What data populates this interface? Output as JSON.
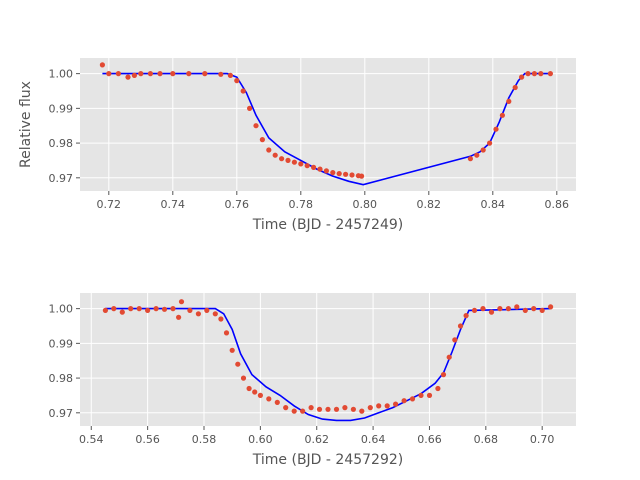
{
  "chart_data": [
    {
      "type": "scatter",
      "xlabel": "Time (BJD - 2457249)",
      "ylabel": "Relative flux",
      "xlim": [
        0.711,
        0.866
      ],
      "ylim": [
        0.9662,
        1.0045
      ],
      "xticks": [
        "0.72",
        "0.74",
        "0.76",
        "0.78",
        "0.80",
        "0.82",
        "0.84",
        "0.86"
      ],
      "yticks": [
        "0.97",
        "0.98",
        "0.99",
        "1.00"
      ],
      "grid": true,
      "colors": {
        "data": "#e24a33",
        "model": "#0000ff",
        "background": "#e5e5e5"
      },
      "series": [
        {
          "kind": "points",
          "x": [
            0.718,
            0.72,
            0.723,
            0.726,
            0.728,
            0.73,
            0.733,
            0.736,
            0.74,
            0.745,
            0.75,
            0.755,
            0.758,
            0.76,
            0.762,
            0.764,
            0.766,
            0.768,
            0.77,
            0.772,
            0.774,
            0.776,
            0.778,
            0.78,
            0.782,
            0.784,
            0.786,
            0.788,
            0.79,
            0.792,
            0.794,
            0.796,
            0.798,
            0.799,
            0.833,
            0.835,
            0.837,
            0.839,
            0.841,
            0.843,
            0.845,
            0.847,
            0.849,
            0.851,
            0.853,
            0.855,
            0.858
          ],
          "y": [
            1.0025,
            1.0,
            1.0,
            0.999,
            0.9995,
            1.0,
            1.0,
            1.0,
            1.0,
            1.0,
            1.0,
            0.9998,
            0.9995,
            0.998,
            0.995,
            0.99,
            0.985,
            0.981,
            0.978,
            0.9765,
            0.9755,
            0.975,
            0.9745,
            0.974,
            0.9735,
            0.973,
            0.9725,
            0.972,
            0.9715,
            0.9712,
            0.971,
            0.9708,
            0.9706,
            0.9705,
            0.9755,
            0.9765,
            0.978,
            0.98,
            0.984,
            0.988,
            0.992,
            0.996,
            0.999,
            1.0,
            1.0,
            1.0,
            1.0
          ]
        },
        {
          "kind": "model",
          "x": [
            0.718,
            0.757,
            0.76,
            0.763,
            0.766,
            0.77,
            0.775,
            0.78,
            0.785,
            0.79,
            0.795,
            0.7995,
            0.833,
            0.836,
            0.839,
            0.842,
            0.845,
            0.848,
            0.85,
            0.858
          ],
          "y": [
            1.0,
            1.0,
            0.999,
            0.9945,
            0.988,
            0.9815,
            0.9775,
            0.975,
            0.9725,
            0.9705,
            0.969,
            0.968,
            0.9762,
            0.9775,
            0.98,
            0.986,
            0.993,
            0.998,
            1.0,
            1.0
          ]
        }
      ]
    },
    {
      "type": "scatter",
      "xlabel": "Time (BJD - 2457292)",
      "ylabel": "",
      "xlim": [
        0.536,
        0.712
      ],
      "ylim": [
        0.9662,
        1.0045
      ],
      "xticks": [
        "0.54",
        "0.56",
        "0.58",
        "0.60",
        "0.62",
        "0.64",
        "0.66",
        "0.68",
        "0.70"
      ],
      "yticks": [
        "0.97",
        "0.98",
        "0.99",
        "1.00"
      ],
      "grid": true,
      "colors": {
        "data": "#e24a33",
        "model": "#0000ff",
        "background": "#e5e5e5"
      },
      "series": [
        {
          "kind": "points",
          "x": [
            0.545,
            0.548,
            0.551,
            0.554,
            0.557,
            0.56,
            0.563,
            0.566,
            0.569,
            0.571,
            0.572,
            0.575,
            0.578,
            0.581,
            0.584,
            0.586,
            0.588,
            0.59,
            0.592,
            0.594,
            0.596,
            0.598,
            0.6,
            0.603,
            0.606,
            0.609,
            0.612,
            0.615,
            0.618,
            0.621,
            0.624,
            0.627,
            0.63,
            0.633,
            0.636,
            0.639,
            0.642,
            0.645,
            0.648,
            0.651,
            0.654,
            0.657,
            0.66,
            0.663,
            0.665,
            0.667,
            0.669,
            0.671,
            0.673,
            0.676,
            0.679,
            0.682,
            0.685,
            0.688,
            0.691,
            0.694,
            0.697,
            0.7,
            0.703
          ],
          "y": [
            0.9995,
            1.0,
            0.999,
            1.0,
            1.0,
            0.9995,
            1.0,
            0.9998,
            1.0,
            0.9975,
            1.002,
            0.9995,
            0.9985,
            0.9995,
            0.9985,
            0.997,
            0.993,
            0.988,
            0.984,
            0.98,
            0.977,
            0.976,
            0.975,
            0.974,
            0.973,
            0.9715,
            0.9705,
            0.9705,
            0.9715,
            0.971,
            0.971,
            0.971,
            0.9715,
            0.971,
            0.9705,
            0.9715,
            0.972,
            0.972,
            0.9725,
            0.9735,
            0.974,
            0.975,
            0.975,
            0.977,
            0.981,
            0.986,
            0.991,
            0.995,
            0.998,
            0.9995,
            1.0,
            0.999,
            1.0,
            1.0,
            1.0005,
            0.9995,
            1.0,
            0.9995,
            1.0005
          ]
        },
        {
          "kind": "model",
          "x": [
            0.545,
            0.584,
            0.587,
            0.59,
            0.593,
            0.597,
            0.602,
            0.607,
            0.612,
            0.617,
            0.622,
            0.627,
            0.632,
            0.637,
            0.642,
            0.647,
            0.652,
            0.657,
            0.662,
            0.665,
            0.668,
            0.671,
            0.674,
            0.703
          ],
          "y": [
            1.0,
            1.0,
            0.9985,
            0.994,
            0.987,
            0.981,
            0.9775,
            0.975,
            0.972,
            0.9695,
            0.9682,
            0.9678,
            0.9678,
            0.9685,
            0.97,
            0.9715,
            0.9735,
            0.9755,
            0.9785,
            0.9815,
            0.9875,
            0.994,
            0.9995,
            1.0
          ]
        }
      ]
    }
  ]
}
